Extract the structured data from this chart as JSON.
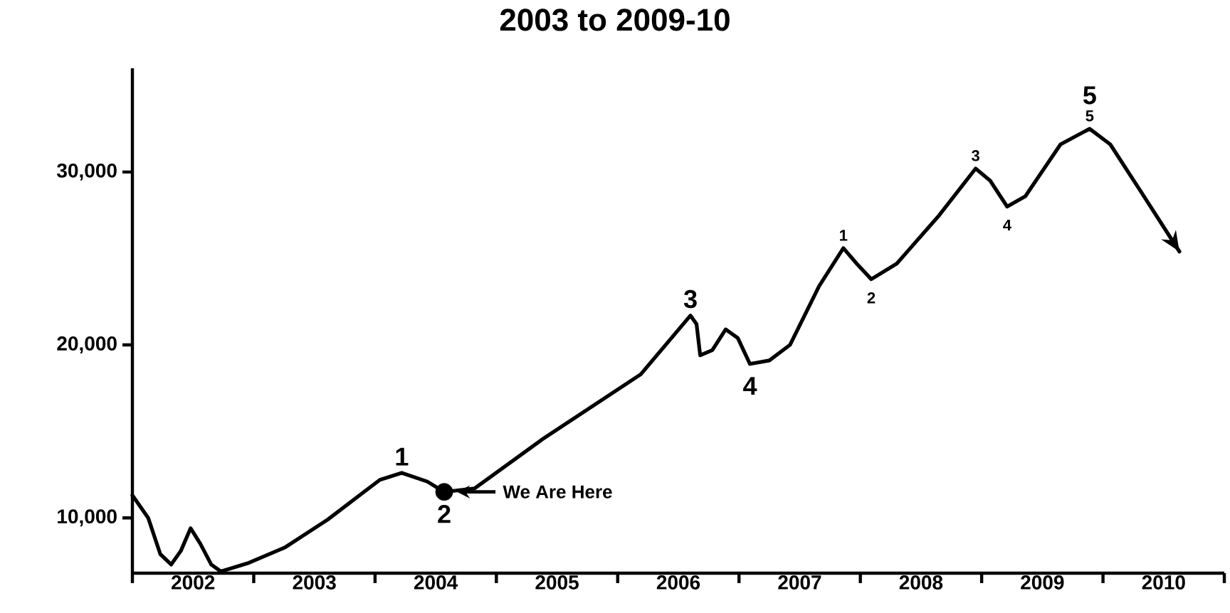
{
  "chart_data": {
    "type": "line",
    "title": "2003 to 2009-10",
    "xlim": [
      2002,
      2011
    ],
    "xticks": [
      {
        "value": 2002,
        "label": null
      },
      {
        "value": 2003,
        "label": null
      },
      {
        "value": 2004,
        "label": null
      },
      {
        "value": 2005,
        "label": null
      },
      {
        "value": 2006,
        "label": null
      },
      {
        "value": 2007,
        "label": null
      },
      {
        "value": 2008,
        "label": null
      },
      {
        "value": 2009,
        "label": null
      },
      {
        "value": 2010,
        "label": null
      },
      {
        "value": 2011,
        "label": null
      },
      {
        "value": 2002.5,
        "label": "2002"
      },
      {
        "value": 2003.5,
        "label": "2003"
      },
      {
        "value": 2004.5,
        "label": "2004"
      },
      {
        "value": 2005.5,
        "label": "2005"
      },
      {
        "value": 2006.5,
        "label": "2006"
      },
      {
        "value": 2007.5,
        "label": "2007"
      },
      {
        "value": 2008.5,
        "label": "2008"
      },
      {
        "value": 2009.5,
        "label": "2009"
      },
      {
        "value": 2010.5,
        "label": "2010"
      }
    ],
    "ylim": [
      6800,
      36000
    ],
    "yticks": [
      {
        "value": 10000,
        "label": "10,000"
      },
      {
        "value": 20000,
        "label": "20,000"
      },
      {
        "value": 30000,
        "label": "30,000"
      }
    ],
    "grid": false,
    "marker": "none",
    "line_style": "solid",
    "series": [
      {
        "color": "#000000",
        "x": [
          2002.0,
          2002.13,
          2002.23,
          2002.32,
          2002.4,
          2002.48,
          2002.56,
          2002.65,
          2002.73,
          2002.96,
          2003.26,
          2003.61,
          2004.04,
          2004.22,
          2004.43,
          2004.57,
          2004.82,
          2005.37,
          2006.19,
          2006.6,
          2006.65,
          2006.68,
          2006.78,
          2006.89,
          2006.99,
          2007.09,
          2007.25,
          2007.42,
          2007.66,
          2007.86,
          2007.97,
          2008.09,
          2008.3,
          2008.65,
          2008.95,
          2009.07,
          2009.21,
          2009.36,
          2009.65,
          2009.89,
          2010.06,
          2010.3,
          2010.63
        ],
        "values": [
          11300,
          10000,
          7900,
          7300,
          8100,
          9400,
          8500,
          7300,
          6900,
          7400,
          8300,
          9900,
          12200,
          12600,
          12100,
          11500,
          11700,
          14500,
          18300,
          21700,
          21200,
          19400,
          19700,
          20900,
          20400,
          18900,
          19100,
          20000,
          23400,
          25600,
          24700,
          23800,
          24700,
          27500,
          30200,
          29500,
          28000,
          28600,
          31600,
          32500,
          31600,
          29000,
          25400
        ]
      },
      {
        "type": "scatter",
        "marker": "circle",
        "color": "#000000",
        "x": [
          2004.57
        ],
        "values": [
          11500
        ]
      }
    ],
    "annotations": [
      {
        "text": "1",
        "x": 2007.86,
        "y": 25600
      },
      {
        "text": "2",
        "x": 2008.09,
        "y": 23800
      },
      {
        "text": "3",
        "x": 2008.95,
        "y": 30200
      },
      {
        "text": "4",
        "x": 2009.21,
        "y": 28000
      },
      {
        "text": "5",
        "x": 2009.89,
        "y": 32500
      },
      {
        "text": "1",
        "x": 2004.22,
        "y": 12600
      },
      {
        "text": "2",
        "x": 2004.57,
        "y": 11500
      },
      {
        "text": "3",
        "x": 2006.6,
        "y": 21700
      },
      {
        "text": "4",
        "x": 2007.09,
        "y": 18900
      },
      {
        "text": "5",
        "x": 2009.89,
        "y": 32500
      },
      "We Are Here"
    ]
  }
}
